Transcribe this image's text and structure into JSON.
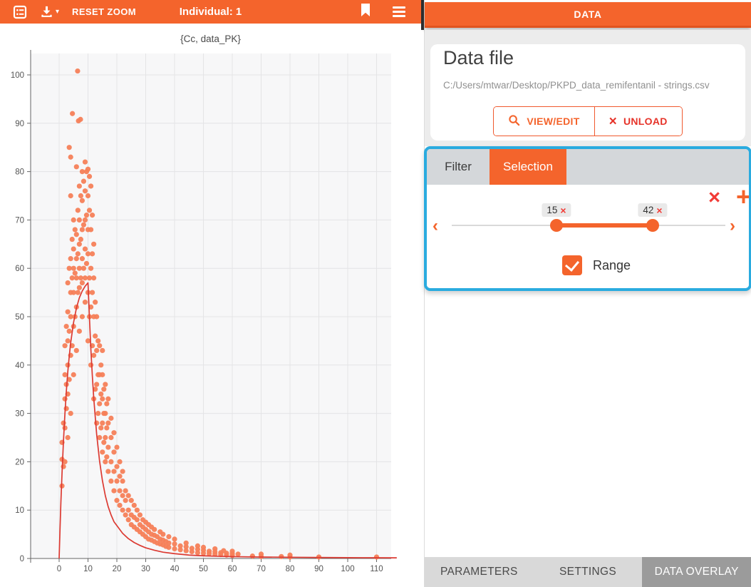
{
  "left_toolbar": {
    "reset_zoom": "RESET ZOOM",
    "individual": "Individual: 1"
  },
  "icons": {
    "caret_down": "▾",
    "close": "×",
    "add": "+",
    "prev": "‹",
    "next": "›"
  },
  "right_panel": {
    "header": "DATA",
    "data_file": {
      "heading": "Data file",
      "path": "C:/Users/mtwar/Desktop/PKPD_data_remifentanil - strings.csv",
      "view_edit_label": "VIEW/EDIT",
      "unload_label": "UNLOAD"
    },
    "filter_card": {
      "tabs": [
        "Filter",
        "Selection"
      ],
      "active_tab": "Selection",
      "slider": {
        "handles": [
          {
            "value": "15"
          },
          {
            "value": "42"
          }
        ]
      },
      "range_checkbox": {
        "label": "Range",
        "checked": true
      }
    },
    "bottom_tabs": [
      {
        "label": "PARAMETERS",
        "active": false
      },
      {
        "label": "SETTINGS",
        "active": false
      },
      {
        "label": "DATA OVERLAY",
        "active": true
      }
    ]
  },
  "colors": {
    "accent_orange": "#f4642c",
    "scatter_orange": "#f57f58",
    "curve_red": "#dc3a32",
    "highlight_cyan": "#2aabdf",
    "delete_red": "#f23b36",
    "unload_red": "#e63329",
    "panel_gray": "#ececec",
    "tabbar_gray": "#d4d7da",
    "active_bottom_tab_gray": "#9b9b9b"
  },
  "chart_data": {
    "type": "scatter",
    "title": "{Cc, data_PK}",
    "xlabel": "",
    "ylabel": "",
    "xlim": [
      -10,
      115
    ],
    "ylim": [
      0,
      104
    ],
    "xticks": [
      0,
      10,
      20,
      30,
      40,
      50,
      60,
      70,
      80,
      90,
      100,
      110
    ],
    "yticks": [
      0,
      10,
      20,
      30,
      40,
      50,
      60,
      70,
      80,
      90,
      100
    ],
    "grid": true,
    "scatter_series": {
      "name": "data_PK",
      "color": "#f57f58",
      "points": [
        [
          1,
          15
        ],
        [
          1,
          20.5
        ],
        [
          1,
          24
        ],
        [
          1.5,
          19
        ],
        [
          1.5,
          28
        ],
        [
          2,
          20
        ],
        [
          2,
          27
        ],
        [
          2,
          33
        ],
        [
          2,
          38
        ],
        [
          2,
          44
        ],
        [
          2.5,
          31
        ],
        [
          2.5,
          36
        ],
        [
          2.5,
          48
        ],
        [
          3,
          25
        ],
        [
          3,
          34
        ],
        [
          3,
          40
        ],
        [
          3,
          45
        ],
        [
          3,
          51
        ],
        [
          3,
          57
        ],
        [
          3.5,
          37
        ],
        [
          3.5,
          47
        ],
        [
          3.5,
          60
        ],
        [
          3.5,
          85
        ],
        [
          4,
          30
        ],
        [
          4,
          42
        ],
        [
          4,
          50
        ],
        [
          4,
          55
        ],
        [
          4,
          62
        ],
        [
          4,
          75
        ],
        [
          4,
          83
        ],
        [
          4.5,
          44
        ],
        [
          4.5,
          58
        ],
        [
          4.5,
          66
        ],
        [
          4.6,
          92
        ],
        [
          5,
          38
        ],
        [
          5,
          48
        ],
        [
          5,
          55
        ],
        [
          5,
          60
        ],
        [
          5,
          64
        ],
        [
          5,
          70
        ],
        [
          5.5,
          50
        ],
        [
          5.5,
          59
        ],
        [
          5.5,
          68
        ],
        [
          6,
          43
        ],
        [
          6,
          52
        ],
        [
          6,
          58
        ],
        [
          6,
          62
        ],
        [
          6,
          67
        ],
        [
          6,
          81
        ],
        [
          6.4,
          100.8
        ],
        [
          6.5,
          55
        ],
        [
          6.5,
          63
        ],
        [
          6.5,
          72
        ],
        [
          6.7,
          90.5
        ],
        [
          7,
          47
        ],
        [
          7,
          56
        ],
        [
          7,
          60
        ],
        [
          7,
          65
        ],
        [
          7,
          70
        ],
        [
          7,
          77
        ],
        [
          7.4,
          90.8
        ],
        [
          7.5,
          58
        ],
        [
          7.5,
          66
        ],
        [
          7.5,
          75
        ],
        [
          8,
          50
        ],
        [
          8,
          57
        ],
        [
          8,
          62
        ],
        [
          8,
          68
        ],
        [
          8,
          74
        ],
        [
          8,
          80
        ],
        [
          8.5,
          60
        ],
        [
          8.5,
          69
        ],
        [
          8.5,
          78
        ],
        [
          9,
          53
        ],
        [
          9,
          58
        ],
        [
          9,
          64
        ],
        [
          9,
          70
        ],
        [
          9,
          76
        ],
        [
          9,
          82
        ],
        [
          9.5,
          61
        ],
        [
          9.5,
          71
        ],
        [
          9.5,
          80
        ],
        [
          10,
          45
        ],
        [
          10,
          55
        ],
        [
          10,
          63
        ],
        [
          10,
          68
        ],
        [
          10,
          75
        ],
        [
          10,
          80.5
        ],
        [
          10.5,
          50
        ],
        [
          10.5,
          58
        ],
        [
          10.5,
          72
        ],
        [
          10.5,
          79
        ],
        [
          11,
          40
        ],
        [
          11,
          52
        ],
        [
          11,
          60
        ],
        [
          11,
          68
        ],
        [
          11,
          77
        ],
        [
          11.5,
          44
        ],
        [
          11.5,
          55
        ],
        [
          11.5,
          63
        ],
        [
          11.5,
          71
        ],
        [
          12,
          33
        ],
        [
          12,
          42
        ],
        [
          12,
          50
        ],
        [
          12,
          58
        ],
        [
          12,
          65
        ],
        [
          12.5,
          35
        ],
        [
          12.5,
          46
        ],
        [
          12.5,
          53
        ],
        [
          13,
          28
        ],
        [
          13,
          36
        ],
        [
          13,
          43
        ],
        [
          13,
          50
        ],
        [
          13.5,
          30
        ],
        [
          13.5,
          38
        ],
        [
          13.5,
          45
        ],
        [
          14,
          25
        ],
        [
          14,
          32
        ],
        [
          14,
          38
        ],
        [
          14,
          44
        ],
        [
          14.5,
          27
        ],
        [
          14.5,
          34
        ],
        [
          14.5,
          40
        ],
        [
          15,
          22
        ],
        [
          15,
          28
        ],
        [
          15,
          33
        ],
        [
          15,
          38
        ],
        [
          15,
          43
        ],
        [
          15.5,
          24
        ],
        [
          15.5,
          30
        ],
        [
          15.5,
          35
        ],
        [
          16,
          20
        ],
        [
          16,
          25
        ],
        [
          16,
          30
        ],
        [
          16,
          36
        ],
        [
          16.5,
          21
        ],
        [
          16.5,
          27
        ],
        [
          16.5,
          32
        ],
        [
          17,
          18
        ],
        [
          17,
          23
        ],
        [
          17,
          28
        ],
        [
          17,
          33
        ],
        [
          18,
          16
        ],
        [
          18,
          20
        ],
        [
          18,
          25
        ],
        [
          18,
          29
        ],
        [
          19,
          14
        ],
        [
          19,
          18
        ],
        [
          19,
          22
        ],
        [
          19,
          26
        ],
        [
          20,
          12
        ],
        [
          20,
          16
        ],
        [
          20,
          19
        ],
        [
          20,
          23
        ],
        [
          21,
          11
        ],
        [
          21,
          14
        ],
        [
          21,
          17
        ],
        [
          21,
          20
        ],
        [
          22,
          10
        ],
        [
          22,
          13
        ],
        [
          22,
          16
        ],
        [
          22,
          18
        ],
        [
          23,
          9
        ],
        [
          23,
          12
        ],
        [
          23,
          14
        ],
        [
          24,
          8
        ],
        [
          24,
          10
        ],
        [
          24,
          13
        ],
        [
          25,
          7
        ],
        [
          25,
          9
        ],
        [
          25,
          12
        ],
        [
          26,
          6.5
        ],
        [
          26,
          8.5
        ],
        [
          26,
          11
        ],
        [
          27,
          6
        ],
        [
          27,
          8
        ],
        [
          27,
          10
        ],
        [
          28,
          5.5
        ],
        [
          28,
          7
        ],
        [
          28,
          9
        ],
        [
          29,
          5
        ],
        [
          29,
          6.5
        ],
        [
          29,
          8
        ],
        [
          30,
          4.5
        ],
        [
          30,
          6
        ],
        [
          30,
          7.5
        ],
        [
          31,
          4
        ],
        [
          31,
          5.5
        ],
        [
          31,
          7
        ],
        [
          32,
          3.8
        ],
        [
          32,
          5
        ],
        [
          32,
          6.5
        ],
        [
          33,
          3.5
        ],
        [
          33,
          4.8
        ],
        [
          33,
          6
        ],
        [
          34,
          3.2
        ],
        [
          34,
          4.5
        ],
        [
          35,
          3
        ],
        [
          35,
          4
        ],
        [
          35,
          5.5
        ],
        [
          36,
          2.8
        ],
        [
          36,
          3.8
        ],
        [
          36,
          5
        ],
        [
          37,
          2.5
        ],
        [
          37,
          3.5
        ],
        [
          38,
          2.3
        ],
        [
          38,
          3.2
        ],
        [
          38,
          4.5
        ],
        [
          40,
          2
        ],
        [
          40,
          3
        ],
        [
          40,
          4
        ],
        [
          42,
          1.8
        ],
        [
          42,
          2.6
        ],
        [
          44,
          1.6
        ],
        [
          44,
          2.4
        ],
        [
          44,
          3.2
        ],
        [
          46,
          1.4
        ],
        [
          46,
          2.1
        ],
        [
          48,
          1.2
        ],
        [
          48,
          1.9
        ],
        [
          48,
          2.6
        ],
        [
          50,
          1.1
        ],
        [
          50,
          1.7
        ],
        [
          50,
          2.3
        ],
        [
          52,
          1
        ],
        [
          52,
          1.5
        ],
        [
          54,
          0.9
        ],
        [
          54,
          1.4
        ],
        [
          54,
          2
        ],
        [
          56,
          0.8
        ],
        [
          56,
          1.2
        ],
        [
          57,
          1.6
        ],
        [
          58,
          0.7
        ],
        [
          58,
          1.1
        ],
        [
          60,
          0.6
        ],
        [
          60,
          1
        ],
        [
          60,
          1.5
        ],
        [
          62,
          0.9
        ],
        [
          67,
          0.5
        ],
        [
          70,
          0.4
        ],
        [
          70,
          0.9
        ],
        [
          77,
          0.4
        ],
        [
          80,
          0.3
        ],
        [
          80,
          0.7
        ],
        [
          90,
          0.3
        ],
        [
          110,
          0.3
        ]
      ]
    },
    "line_series": {
      "name": "Cc",
      "color": "#dc3a32",
      "points": [
        [
          0,
          0
        ],
        [
          0.3,
          6
        ],
        [
          0.6,
          11.5
        ],
        [
          1,
          17.6
        ],
        [
          1.5,
          24.3
        ],
        [
          2,
          29.9
        ],
        [
          2.5,
          34.6
        ],
        [
          3,
          38.6
        ],
        [
          3.5,
          41.8
        ],
        [
          4,
          44.6
        ],
        [
          5,
          48.8
        ],
        [
          6,
          51.8
        ],
        [
          7,
          53.9
        ],
        [
          8,
          55.3
        ],
        [
          9,
          56.3
        ],
        [
          10,
          57
        ],
        [
          10.5,
          49.8
        ],
        [
          11,
          43.2
        ],
        [
          11.5,
          37.8
        ],
        [
          12,
          33.1
        ],
        [
          13,
          25.7
        ],
        [
          14,
          20.2
        ],
        [
          15,
          16.1
        ],
        [
          16,
          13.0
        ],
        [
          17,
          10.7
        ],
        [
          18,
          9.0
        ],
        [
          19,
          7.6
        ],
        [
          20,
          6.8
        ],
        [
          22,
          5.2
        ],
        [
          24,
          4.1
        ],
        [
          26,
          3.3
        ],
        [
          28,
          2.7
        ],
        [
          30,
          2.2
        ],
        [
          33,
          1.7
        ],
        [
          36,
          1.3
        ],
        [
          40,
          1.0
        ],
        [
          45,
          0.7
        ],
        [
          50,
          0.55
        ],
        [
          55,
          0.45
        ],
        [
          60,
          0.38
        ],
        [
          70,
          0.3
        ],
        [
          80,
          0.25
        ],
        [
          90,
          0.2
        ],
        [
          100,
          0.17
        ],
        [
          110,
          0.15
        ],
        [
          117,
          0.13
        ]
      ]
    }
  }
}
